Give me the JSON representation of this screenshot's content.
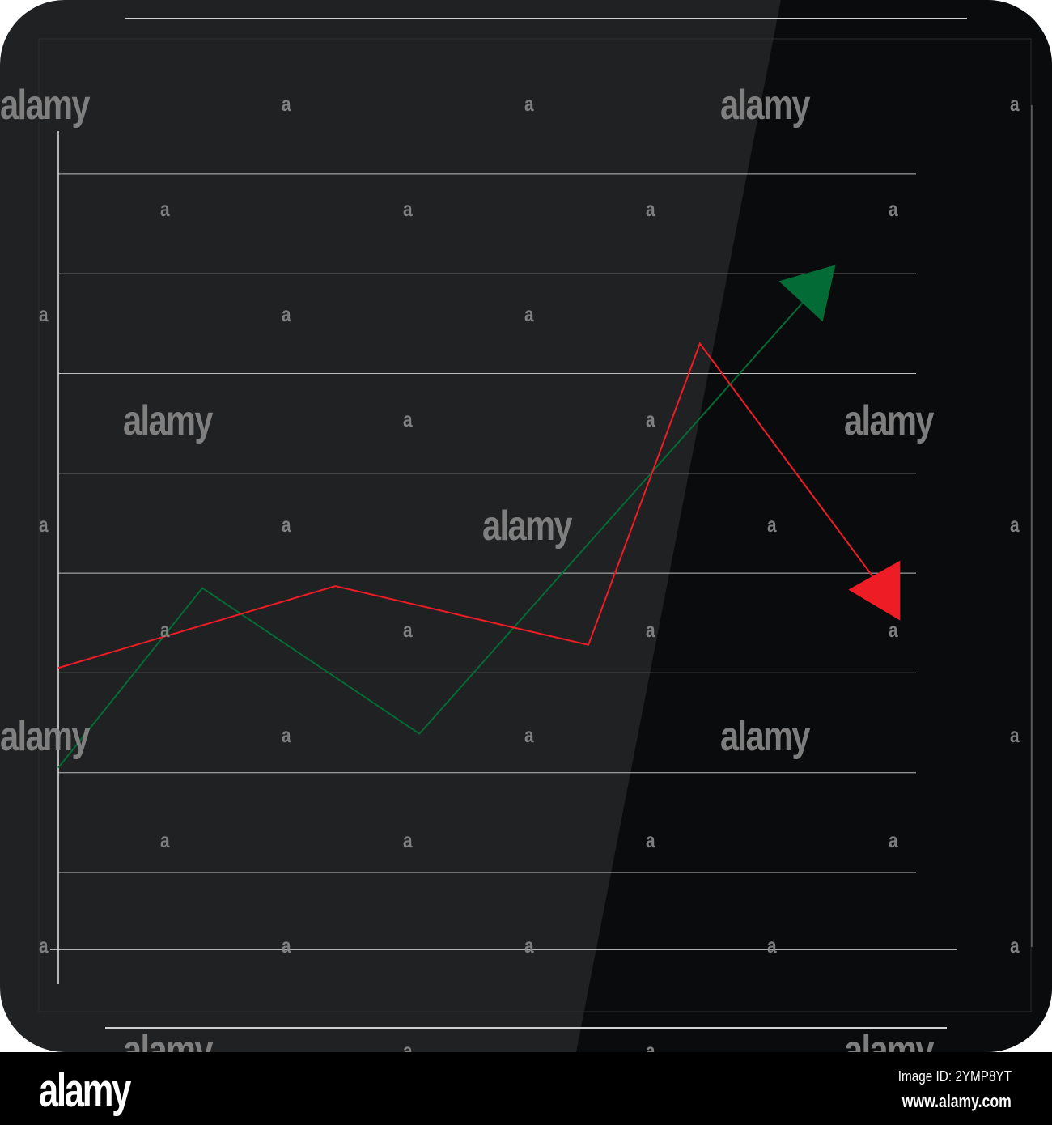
{
  "colors": {
    "panel": "#202122",
    "panel_shade": "#0a0b0c",
    "grid": "#bfbfbf",
    "axis": "#e6e6e6",
    "green": "#036b36",
    "red": "#ee1c25",
    "footer": "#000000"
  },
  "chart_data": {
    "type": "line",
    "title": "",
    "xlabel": "",
    "ylabel": "",
    "grid": true,
    "ylim": [
      0.2,
      8.3
    ],
    "xlim": [
      0,
      10.5
    ],
    "series": [
      {
        "color": "#036b36",
        "end_marker": "arrow-up-right",
        "points": [
          [
            0,
            2.05
          ],
          [
            1.68,
            3.85
          ],
          [
            4.21,
            2.39
          ],
          [
            8.75,
            6.78
          ]
        ]
      },
      {
        "color": "#ee1c25",
        "end_marker": "arrow-down-right",
        "points": [
          [
            0,
            3.05
          ],
          [
            3.23,
            3.87
          ],
          [
            6.18,
            3.28
          ],
          [
            7.48,
            6.3
          ],
          [
            9.56,
            3.89
          ]
        ]
      }
    ]
  },
  "watermark": {
    "word": "alamy",
    "letter": "a"
  },
  "footer": {
    "logo": "alamy",
    "image_id": "Image ID: 2YMP8YT",
    "url": "www.alamy.com"
  }
}
